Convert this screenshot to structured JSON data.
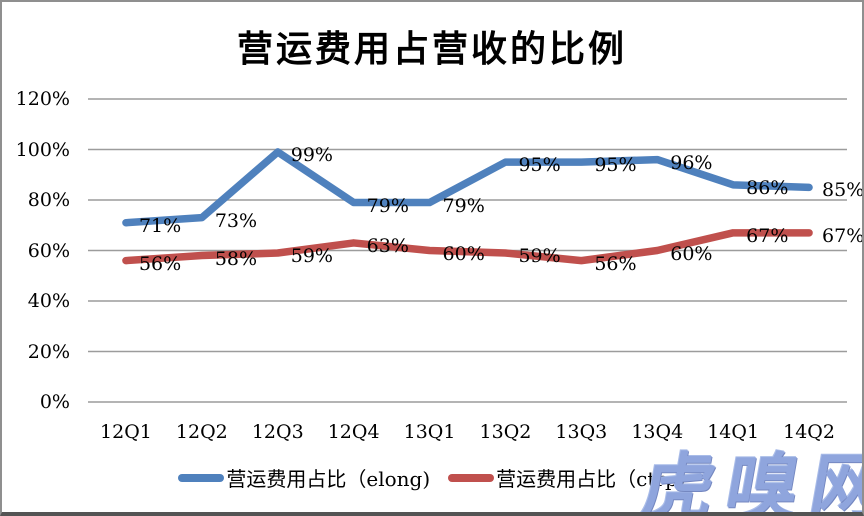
{
  "chart_data": {
    "type": "line",
    "title": "营运费用占营收的比例",
    "categories": [
      "12Q1",
      "12Q2",
      "12Q3",
      "12Q4",
      "13Q1",
      "13Q2",
      "13Q3",
      "13Q4",
      "14Q1",
      "14Q2"
    ],
    "series": [
      {
        "name": "营运费用占比（elong)",
        "color": "#4F81BD",
        "values": [
          71,
          73,
          99,
          79,
          79,
          95,
          95,
          96,
          86,
          85
        ]
      },
      {
        "name": "营运费用占比（ctrp)",
        "color": "#C0504D",
        "values": [
          56,
          58,
          59,
          63,
          60,
          59,
          56,
          60,
          67,
          67
        ]
      }
    ],
    "xlabel": "",
    "ylabel": "",
    "ylim": [
      0,
      120
    ],
    "ytick_labels": [
      "0%",
      "20%",
      "40%",
      "60%",
      "80%",
      "100%",
      "120%"
    ],
    "grid": "horizontal",
    "gridline_color": "#9c9c9c",
    "legend_position": "bottom",
    "data_labels": "percent"
  },
  "watermark": {
    "text": "虎嗅网",
    "color": "#8FA5DD"
  }
}
